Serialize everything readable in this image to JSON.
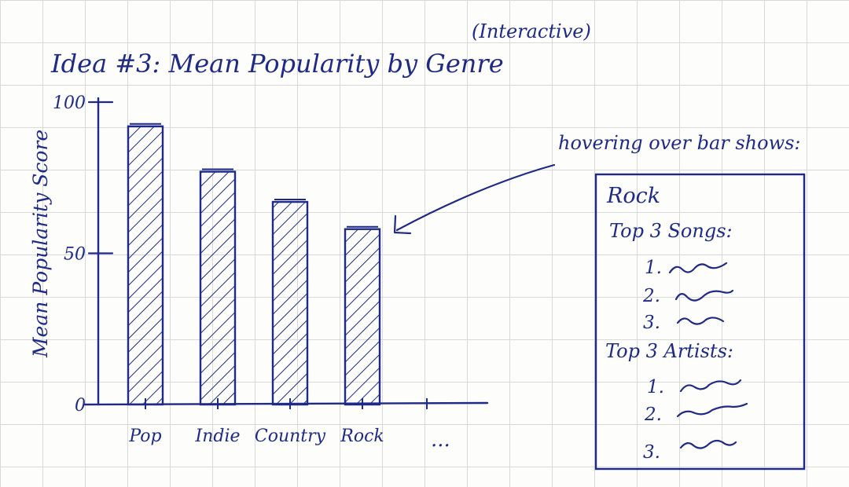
{
  "chart_data": {
    "type": "bar",
    "title": "Idea #3: Mean Popularity by Genre",
    "subtitle": "(Interactive)",
    "xlabel": "",
    "ylabel": "Mean Popularity Score",
    "categories": [
      "Pop",
      "Indie",
      "Country",
      "Rock"
    ],
    "values": [
      92,
      77,
      67,
      58
    ],
    "y_ticks": [
      "0",
      "50",
      "100"
    ],
    "ylim": [
      0,
      100
    ],
    "trailing_label": "...",
    "colors": {
      "ink": "#1f2a86",
      "grid": "#d9d9d9"
    },
    "grid": true,
    "legend": "none"
  },
  "annotation": {
    "text": "hovering over bar shows:",
    "target_category": "Rock"
  },
  "tooltip": {
    "title": "Rock",
    "songs_label": "Top 3 Songs:",
    "artists_label": "Top 3 Artists:",
    "markers": [
      "1.",
      "2.",
      "3."
    ]
  }
}
